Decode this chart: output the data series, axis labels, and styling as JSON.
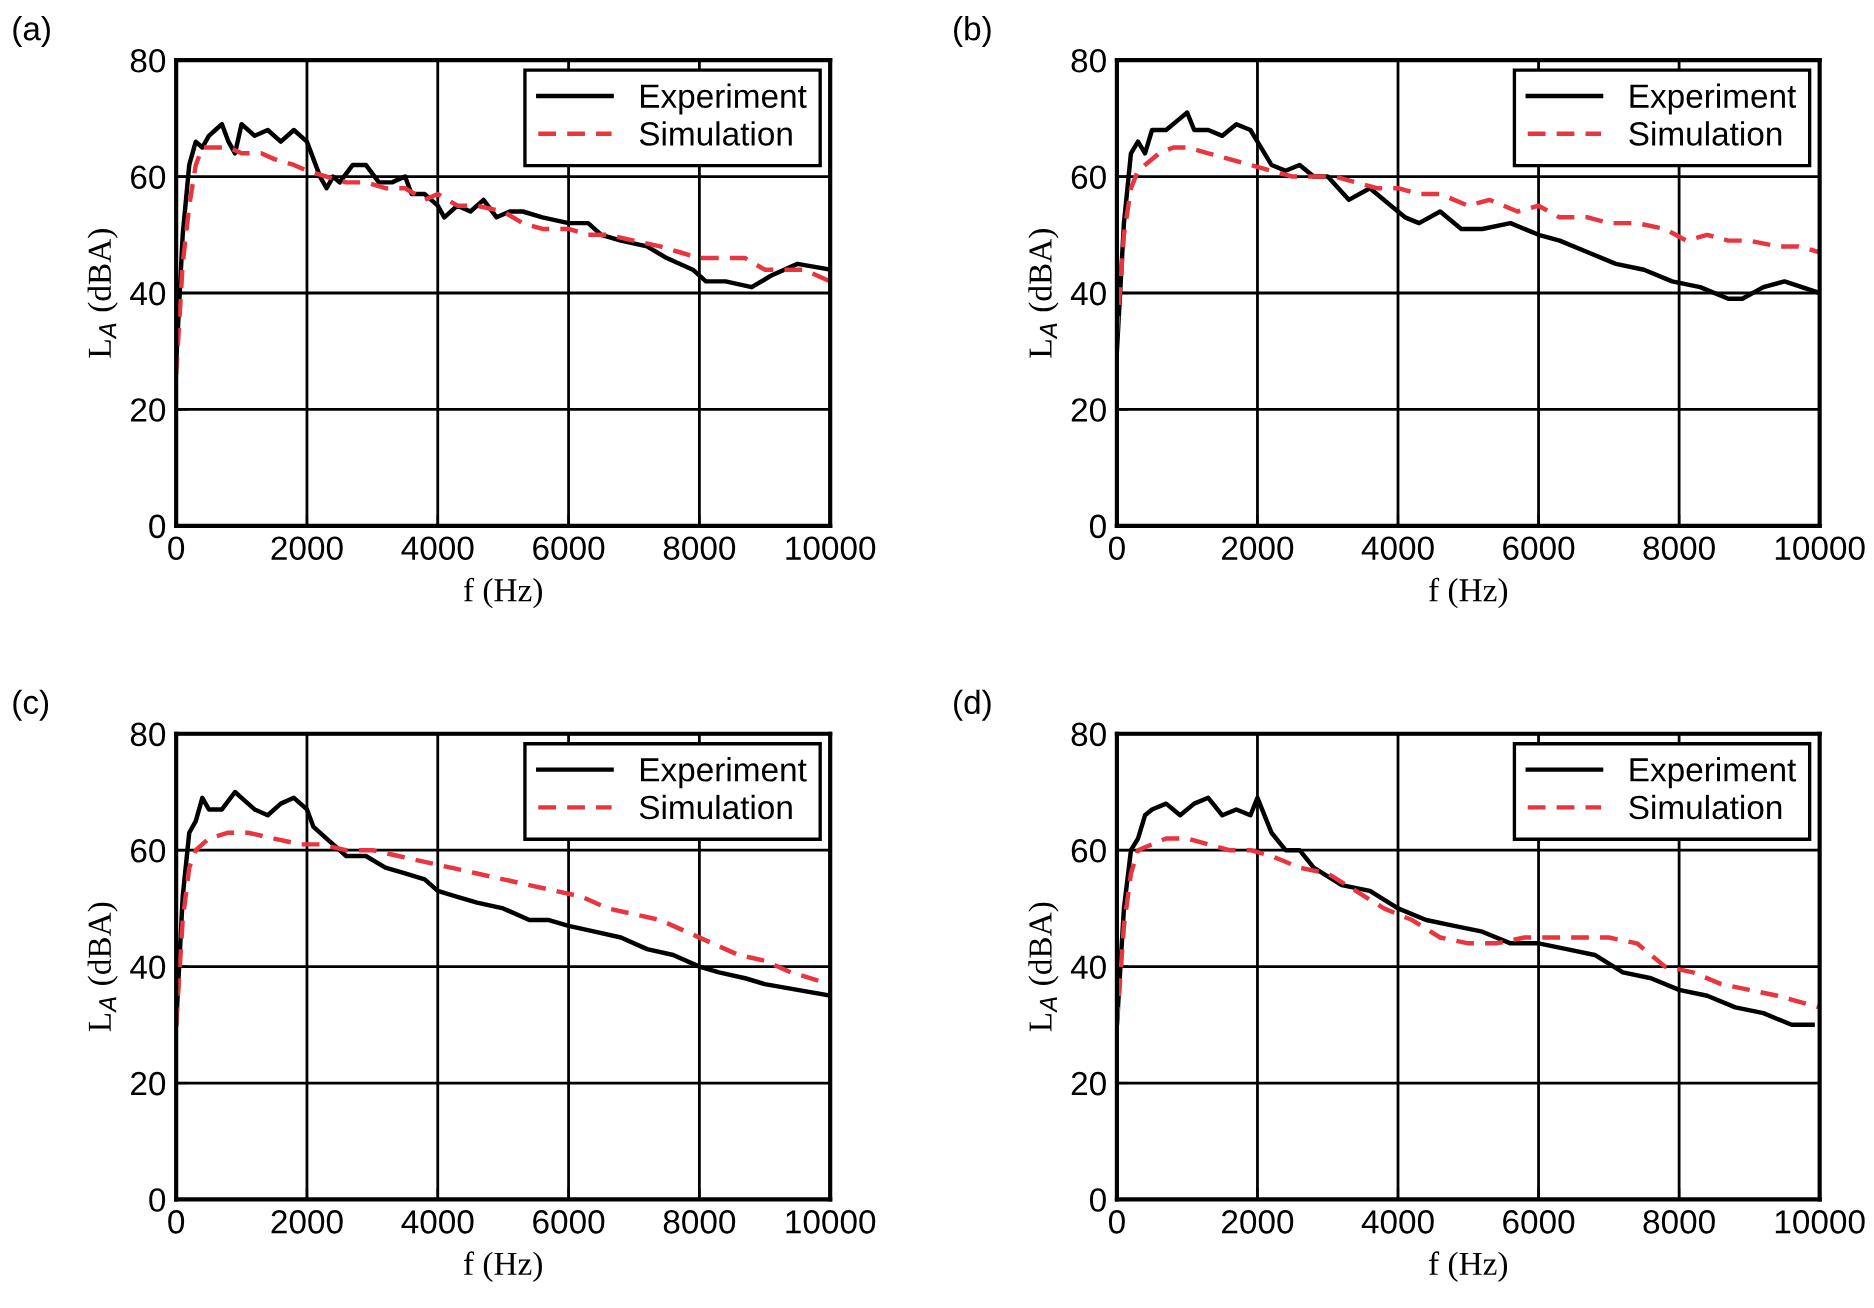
{
  "chart_data": [
    {
      "type": "line",
      "title": "(a)",
      "xlabel": "f (Hz)",
      "ylabel": "L$_{A}$ (dBA)",
      "xlim": [
        0,
        10000
      ],
      "xticks": [
        0,
        2000,
        4000,
        6000,
        8000,
        10000
      ],
      "ylim": [
        0,
        80
      ],
      "yticks": [
        0,
        20,
        40,
        60,
        80
      ],
      "grid": true,
      "legend": "top right",
      "series": [
        {
          "name": "Experiment",
          "color": "#000000",
          "line_style": "solid",
          "x": [
            0,
            100,
            200,
            300,
            400,
            500,
            600,
            700,
            800,
            900,
            1000,
            1200,
            1400,
            1600,
            1800,
            1900,
            2000,
            2100,
            2200,
            2300,
            2400,
            2500,
            2700,
            2900,
            3100,
            3300,
            3500,
            3600,
            3800,
            4000,
            4100,
            4300,
            4500,
            4700,
            4900,
            5100,
            5300,
            5600,
            6000,
            6300,
            6500,
            6800,
            7200,
            7500,
            7900,
            8100,
            8400,
            8800,
            9100,
            9500,
            10000
          ],
          "values": [
            28,
            50,
            62,
            66,
            65,
            67,
            68,
            69,
            66,
            64,
            69,
            67,
            68,
            66,
            68,
            67,
            66,
            63,
            60,
            58,
            60,
            59,
            62,
            62,
            59,
            59,
            60,
            57,
            57,
            55,
            53,
            55,
            54,
            56,
            53,
            54,
            54,
            53,
            52,
            52,
            50,
            49,
            48,
            46,
            44,
            42,
            42,
            41,
            43,
            45,
            44
          ]
        },
        {
          "name": "Simulation",
          "color": "#e8353f",
          "line_style": "dashed",
          "x": [
            0,
            100,
            200,
            300,
            400,
            600,
            800,
            1000,
            1300,
            1500,
            1800,
            2000,
            2300,
            2600,
            2900,
            3200,
            3500,
            3800,
            4000,
            4300,
            4600,
            5000,
            5300,
            5600,
            6000,
            6300,
            6600,
            7000,
            7400,
            7700,
            8000,
            8300,
            8700,
            9000,
            9300,
            9600,
            10000
          ],
          "values": [
            26,
            45,
            55,
            62,
            65,
            65,
            65,
            64,
            64,
            63,
            62,
            61,
            60,
            59,
            59,
            58,
            58,
            56,
            57,
            55,
            55,
            54,
            52,
            51,
            51,
            50,
            50,
            49,
            48,
            47,
            46,
            46,
            46,
            44,
            44,
            44,
            42
          ]
        }
      ]
    },
    {
      "type": "line",
      "title": "(b)",
      "xlabel": "f (Hz)",
      "ylabel": "L$_{A}$ (dBA)",
      "xlim": [
        0,
        10000
      ],
      "xticks": [
        0,
        2000,
        4000,
        6000,
        8000,
        10000
      ],
      "ylim": [
        0,
        80
      ],
      "yticks": [
        0,
        20,
        40,
        60,
        80
      ],
      "grid": true,
      "legend": "top right",
      "series": [
        {
          "name": "Experiment",
          "color": "#000000",
          "line_style": "solid",
          "x": [
            0,
            100,
            200,
            300,
            400,
            500,
            700,
            900,
            1000,
            1100,
            1300,
            1500,
            1700,
            1900,
            2000,
            2200,
            2400,
            2600,
            2800,
            3000,
            3300,
            3600,
            3900,
            4100,
            4300,
            4600,
            4900,
            5200,
            5600,
            6000,
            6300,
            6700,
            7100,
            7500,
            7900,
            8300,
            8700,
            8900,
            9200,
            9500,
            10000
          ],
          "values": [
            30,
            52,
            64,
            66,
            64,
            68,
            68,
            70,
            71,
            68,
            68,
            67,
            69,
            68,
            66,
            62,
            61,
            62,
            60,
            60,
            56,
            58,
            55,
            53,
            52,
            54,
            51,
            51,
            52,
            50,
            49,
            47,
            45,
            44,
            42,
            41,
            39,
            39,
            41,
            42,
            40
          ]
        },
        {
          "name": "Simulation",
          "color": "#e8353f",
          "line_style": "dashed",
          "x": [
            0,
            100,
            200,
            300,
            400,
            600,
            800,
            1000,
            1300,
            1600,
            1900,
            2200,
            2500,
            2800,
            3100,
            3400,
            3700,
            4000,
            4300,
            4600,
            5000,
            5300,
            5700,
            6000,
            6300,
            6700,
            7000,
            7400,
            7800,
            8100,
            8400,
            8700,
            9000,
            9400,
            9700,
            10000
          ],
          "values": [
            33,
            50,
            58,
            61,
            62,
            64,
            65,
            65,
            64,
            63,
            62,
            61,
            60,
            60,
            60,
            59,
            58,
            58,
            57,
            57,
            55,
            56,
            54,
            55,
            53,
            53,
            52,
            52,
            51,
            49,
            50,
            49,
            49,
            48,
            48,
            47
          ]
        }
      ]
    },
    {
      "type": "line",
      "title": "(c)",
      "xlabel": "f (Hz)",
      "ylabel": "L$_{A}$ (dBA)",
      "xlim": [
        0,
        10000
      ],
      "xticks": [
        0,
        2000,
        4000,
        6000,
        8000,
        10000
      ],
      "ylim": [
        0,
        80
      ],
      "yticks": [
        0,
        20,
        40,
        60,
        80
      ],
      "grid": true,
      "legend": "top right",
      "series": [
        {
          "name": "Experiment",
          "color": "#000000",
          "line_style": "solid",
          "x": [
            0,
            100,
            200,
            300,
            400,
            500,
            700,
            900,
            1000,
            1200,
            1400,
            1600,
            1800,
            2000,
            2100,
            2300,
            2600,
            2900,
            3200,
            3500,
            3800,
            4000,
            4300,
            4600,
            5000,
            5400,
            5700,
            6000,
            6400,
            6800,
            7200,
            7600,
            8000,
            8300,
            8700,
            9000,
            9500,
            10000
          ],
          "values": [
            30,
            52,
            63,
            65,
            69,
            67,
            67,
            70,
            69,
            67,
            66,
            68,
            69,
            67,
            64,
            62,
            59,
            59,
            57,
            56,
            55,
            53,
            52,
            51,
            50,
            48,
            48,
            47,
            46,
            45,
            43,
            42,
            40,
            39,
            38,
            37,
            36,
            35
          ]
        },
        {
          "name": "Simulation",
          "color": "#e8353f",
          "line_style": "dashed",
          "x": [
            0,
            100,
            200,
            300,
            500,
            800,
            1100,
            1500,
            1900,
            2200,
            2600,
            3000,
            3400,
            3800,
            4200,
            4600,
            5000,
            5400,
            5800,
            6200,
            6600,
            7000,
            7400,
            7800,
            8200,
            8600,
            9000,
            9400,
            10000
          ],
          "values": [
            30,
            48,
            57,
            60,
            62,
            63,
            63,
            62,
            61,
            61,
            60,
            60,
            59,
            58,
            57,
            56,
            55,
            54,
            53,
            52,
            50,
            49,
            48,
            46,
            44,
            42,
            41,
            39,
            37
          ]
        }
      ]
    },
    {
      "type": "line",
      "title": "(d)",
      "xlabel": "f (Hz)",
      "ylabel": "L$_{A}$ (dBA)",
      "xlim": [
        0,
        10000
      ],
      "xticks": [
        0,
        2000,
        4000,
        6000,
        8000,
        10000
      ],
      "ylim": [
        0,
        80
      ],
      "yticks": [
        0,
        20,
        40,
        60,
        80
      ],
      "grid": true,
      "legend": "top right",
      "series": [
        {
          "name": "Experiment",
          "color": "#000000",
          "line_style": "solid",
          "x": [
            0,
            100,
            200,
            300,
            400,
            500,
            700,
            900,
            1100,
            1300,
            1500,
            1700,
            1900,
            2000,
            2200,
            2400,
            2600,
            2800,
            3200,
            3600,
            4000,
            4400,
            4800,
            5200,
            5600,
            6000,
            6400,
            6800,
            7200,
            7600,
            8000,
            8400,
            8800,
            9200,
            9600,
            9900
          ],
          "values": [
            30,
            50,
            60,
            62,
            66,
            67,
            68,
            66,
            68,
            69,
            66,
            67,
            66,
            69,
            63,
            60,
            60,
            57,
            54,
            53,
            50,
            48,
            47,
            46,
            44,
            44,
            43,
            42,
            39,
            38,
            36,
            35,
            33,
            32,
            30,
            30
          ]
        },
        {
          "name": "Simulation",
          "color": "#e8353f",
          "line_style": "dashed",
          "x": [
            0,
            100,
            200,
            300,
            500,
            700,
            1000,
            1300,
            1600,
            1900,
            2200,
            2600,
            3000,
            3400,
            3800,
            4200,
            4600,
            5000,
            5400,
            5800,
            6200,
            6600,
            7000,
            7400,
            7800,
            8200,
            8600,
            9000,
            9400,
            10000
          ],
          "values": [
            30,
            47,
            56,
            60,
            61,
            62,
            62,
            61,
            60,
            60,
            59,
            57,
            56,
            53,
            50,
            48,
            45,
            44,
            44,
            45,
            45,
            45,
            45,
            44,
            40,
            39,
            37,
            36,
            35,
            33
          ]
        }
      ]
    }
  ]
}
